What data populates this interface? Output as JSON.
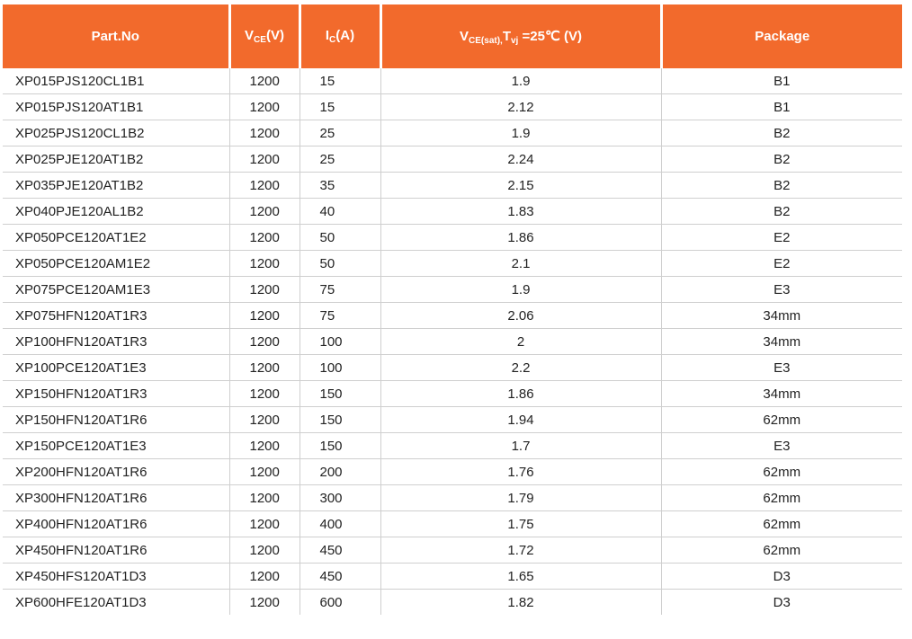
{
  "header": {
    "part_no": "Part.No",
    "vce_main": "V",
    "vce_sub": "CE",
    "vce_unit": "(V)",
    "ic_main": "I",
    "ic_sub": "C",
    "ic_unit": "(A)",
    "vsat_main": "V",
    "vsat_sub": "CE(sat),",
    "vsat_t": "T",
    "vsat_tsub": "vj",
    "vsat_rest": " =25℃ (V)",
    "package": "Package"
  },
  "rows": [
    {
      "part": "XP015PJS120CL1B1",
      "vce": "1200",
      "ic": "15",
      "vsat": "1.9",
      "package": "B1"
    },
    {
      "part": "XP015PJS120AT1B1",
      "vce": "1200",
      "ic": "15",
      "vsat": "2.12",
      "package": "B1"
    },
    {
      "part": "XP025PJS120CL1B2",
      "vce": "1200",
      "ic": "25",
      "vsat": "1.9",
      "package": "B2"
    },
    {
      "part": "XP025PJE120AT1B2",
      "vce": "1200",
      "ic": "25",
      "vsat": "2.24",
      "package": "B2"
    },
    {
      "part": "XP035PJE120AT1B2",
      "vce": "1200",
      "ic": "35",
      "vsat": "2.15",
      "package": "B2"
    },
    {
      "part": "XP040PJE120AL1B2",
      "vce": "1200",
      "ic": "40",
      "vsat": "1.83",
      "package": "B2"
    },
    {
      "part": "XP050PCE120AT1E2",
      "vce": "1200",
      "ic": "50",
      "vsat": "1.86",
      "package": "E2"
    },
    {
      "part": "XP050PCE120AM1E2",
      "vce": "1200",
      "ic": "50",
      "vsat": "2.1",
      "package": "E2"
    },
    {
      "part": "XP075PCE120AM1E3",
      "vce": "1200",
      "ic": "75",
      "vsat": "1.9",
      "package": "E3"
    },
    {
      "part": "XP075HFN120AT1R3",
      "vce": "1200",
      "ic": "75",
      "vsat": "2.06",
      "package": "34mm"
    },
    {
      "part": "XP100HFN120AT1R3",
      "vce": "1200",
      "ic": "100",
      "vsat": "2",
      "package": "34mm"
    },
    {
      "part": "XP100PCE120AT1E3",
      "vce": "1200",
      "ic": "100",
      "vsat": "2.2",
      "package": "E3"
    },
    {
      "part": "XP150HFN120AT1R3",
      "vce": "1200",
      "ic": "150",
      "vsat": "1.86",
      "package": "34mm"
    },
    {
      "part": "XP150HFN120AT1R6",
      "vce": "1200",
      "ic": "150",
      "vsat": "1.94",
      "package": "62mm"
    },
    {
      "part": "XP150PCE120AT1E3",
      "vce": "1200",
      "ic": "150",
      "vsat": "1.7",
      "package": "E3"
    },
    {
      "part": "XP200HFN120AT1R6",
      "vce": "1200",
      "ic": "200",
      "vsat": "1.76",
      "package": "62mm"
    },
    {
      "part": "XP300HFN120AT1R6",
      "vce": "1200",
      "ic": "300",
      "vsat": "1.79",
      "package": "62mm"
    },
    {
      "part": "XP400HFN120AT1R6",
      "vce": "1200",
      "ic": "400",
      "vsat": "1.75",
      "package": "62mm"
    },
    {
      "part": "XP450HFN120AT1R6",
      "vce": "1200",
      "ic": "450",
      "vsat": "1.72",
      "package": "62mm"
    },
    {
      "part": "XP450HFS120AT1D3",
      "vce": "1200",
      "ic": "450",
      "vsat": "1.65",
      "package": "D3"
    },
    {
      "part": "XP600HFE120AT1D3",
      "vce": "1200",
      "ic": "600",
      "vsat": "1.82",
      "package": "D3"
    }
  ],
  "colors": {
    "header_bg": "#f26a2c",
    "header_text": "#ffffff",
    "grid": "#cfcfcf"
  }
}
